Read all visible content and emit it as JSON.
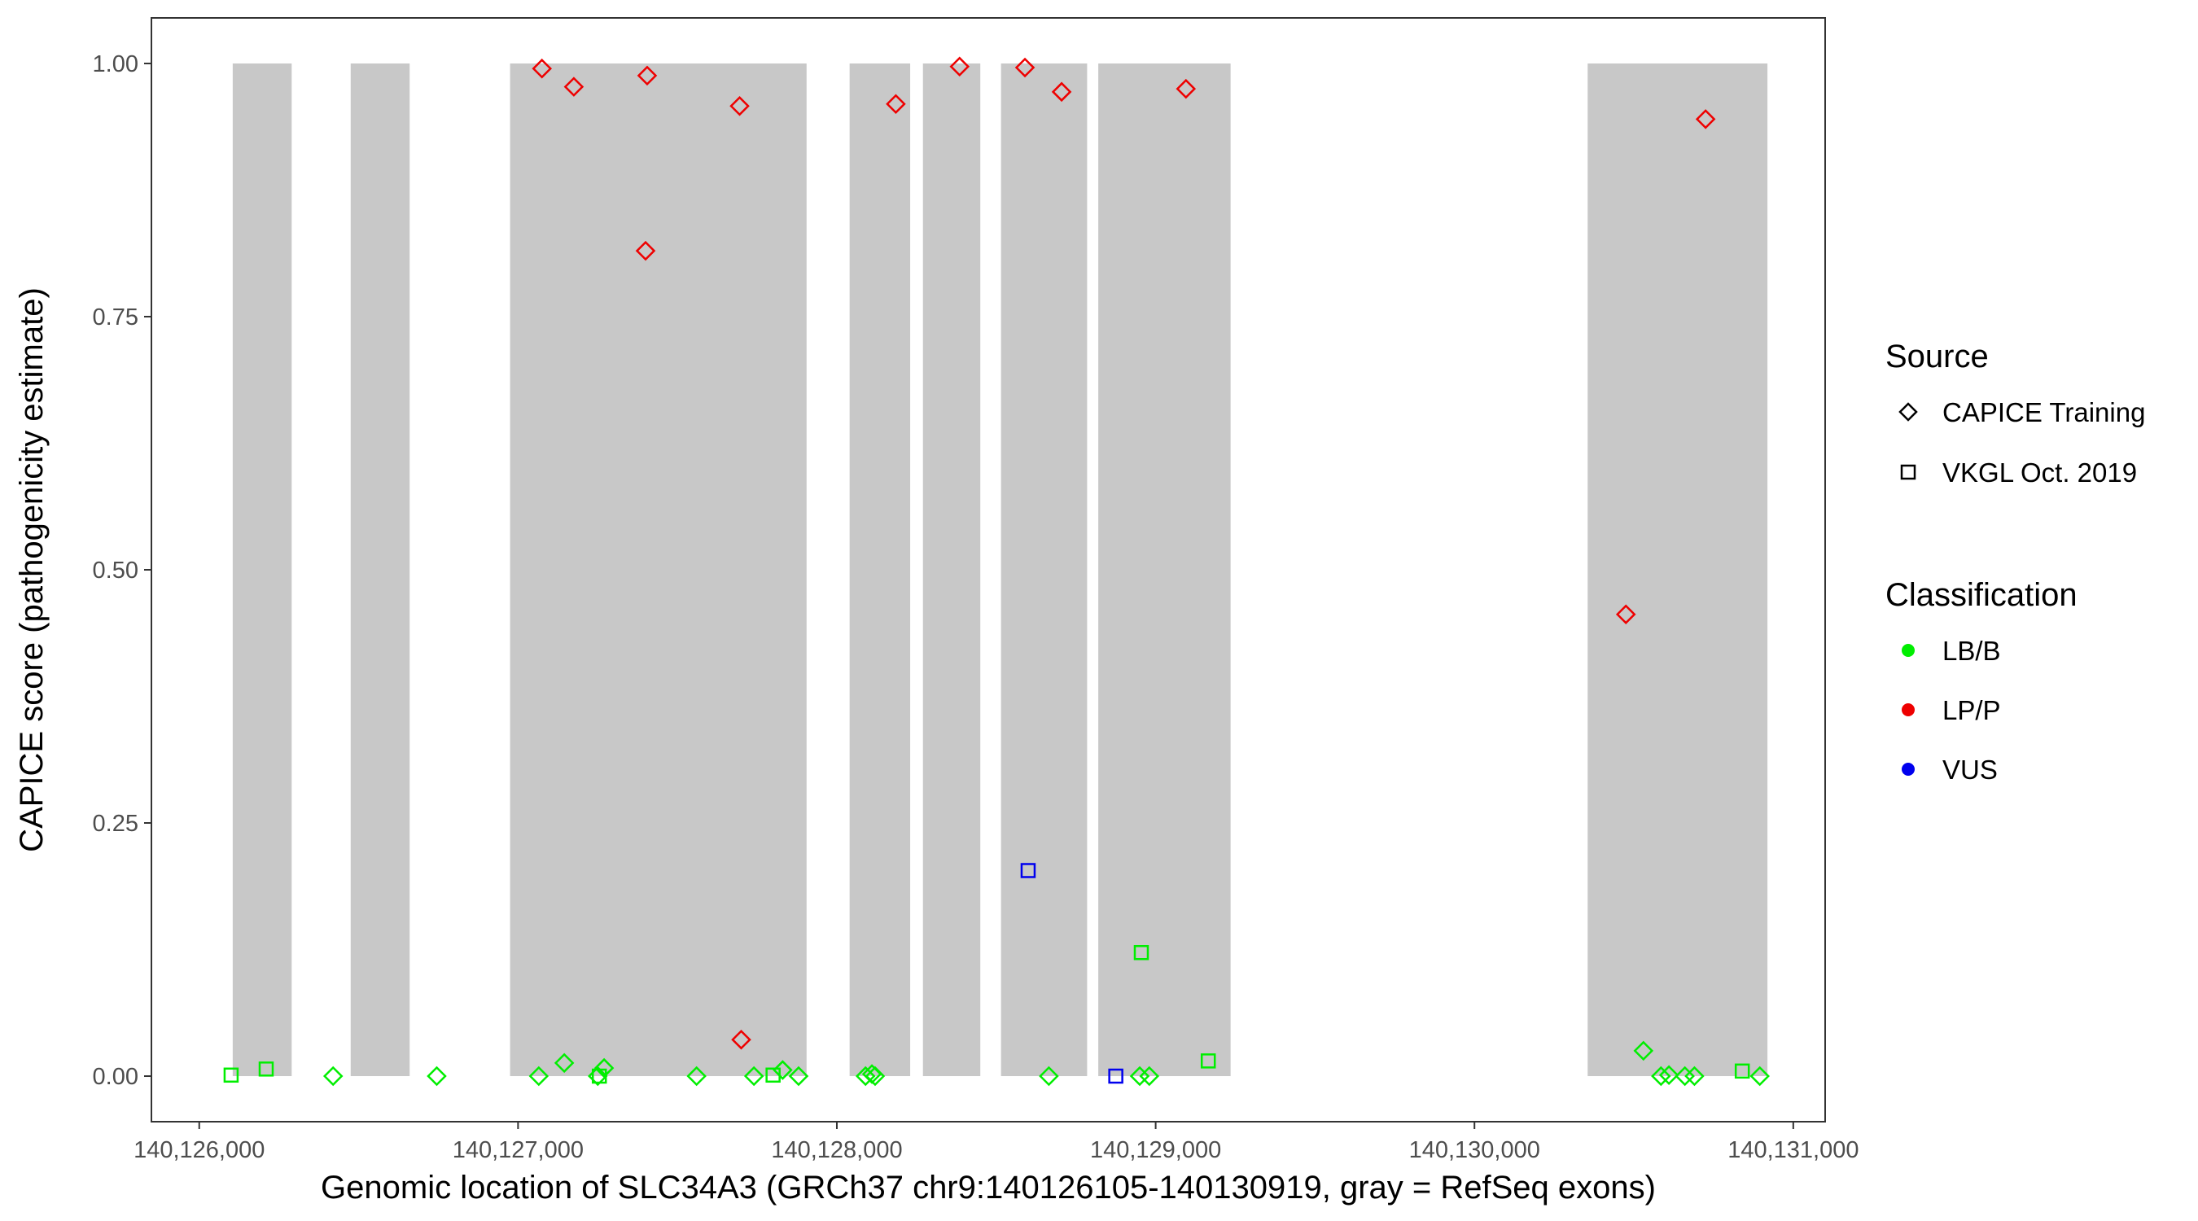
{
  "chart_data": {
    "type": "scatter",
    "title": "",
    "xlabel": "Genomic location of SLC34A3 (GRCh37 chr9:140126105-140130919, gray = RefSeq exons)",
    "ylabel": "CAPICE score (pathogenicity estimate)",
    "xlim": [
      140125850,
      140131100
    ],
    "ylim": [
      -0.045,
      1.045
    ],
    "x_ticks": [
      140126000,
      140127000,
      140128000,
      140129000,
      140130000,
      140131000
    ],
    "x_tick_labels": [
      "140,126,000",
      "140,127,000",
      "140,128,000",
      "140,129,000",
      "140,130,000",
      "140,131,000"
    ],
    "y_ticks": [
      0,
      0.25,
      0.5,
      0.75,
      1.0
    ],
    "y_tick_labels": [
      "0.00",
      "0.25",
      "0.50",
      "0.75",
      "1.00"
    ],
    "grid": false,
    "exon_color": "#c8c8c8",
    "exons": [
      [
        140126105,
        140126290
      ],
      [
        140126475,
        140126660
      ],
      [
        140126975,
        140127905
      ],
      [
        140128040,
        140128230
      ],
      [
        140128270,
        140128450
      ],
      [
        140128515,
        140128785
      ],
      [
        140128820,
        140129235
      ],
      [
        140130355,
        140130919
      ]
    ],
    "legend": {
      "position": "right",
      "source_title": "Source",
      "source_items": [
        {
          "label": "CAPICE Training",
          "shape": "diamond"
        },
        {
          "label": "VKGL Oct. 2019",
          "shape": "square"
        }
      ],
      "class_title": "Classification",
      "class_items": [
        {
          "label": "LB/B",
          "color": "#00ee00"
        },
        {
          "label": "LP/P",
          "color": "#ee0000"
        },
        {
          "label": "VUS",
          "color": "#0000ee"
        }
      ]
    },
    "series": [
      {
        "name": "CAPICE Training LP/P",
        "shape": "diamond",
        "color": "#ee0000",
        "points": [
          [
            140127075,
            0.995
          ],
          [
            140127175,
            0.977
          ],
          [
            140127405,
            0.988
          ],
          [
            140127400,
            0.815
          ],
          [
            140127695,
            0.958
          ],
          [
            140127700,
            0.036
          ],
          [
            140128185,
            0.96
          ],
          [
            140128385,
            0.997
          ],
          [
            140128590,
            0.996
          ],
          [
            140128705,
            0.972
          ],
          [
            140129095,
            0.975
          ],
          [
            140130475,
            0.456
          ],
          [
            140130725,
            0.945
          ]
        ]
      },
      {
        "name": "CAPICE Training LB/B",
        "shape": "diamond",
        "color": "#00ee00",
        "points": [
          [
            140126420,
            0.0
          ],
          [
            140126745,
            0.0
          ],
          [
            140127065,
            0.0
          ],
          [
            140127145,
            0.013
          ],
          [
            140127250,
            0.0
          ],
          [
            140127270,
            0.008
          ],
          [
            140127560,
            0.0
          ],
          [
            140127740,
            0.0
          ],
          [
            140127830,
            0.006
          ],
          [
            140127880,
            0.0
          ],
          [
            140128090,
            0.0
          ],
          [
            140128110,
            0.002
          ],
          [
            140128120,
            0.0
          ],
          [
            140128665,
            0.0
          ],
          [
            140128950,
            0.0
          ],
          [
            140128980,
            0.0
          ],
          [
            140130530,
            0.025
          ],
          [
            140130585,
            0.0
          ],
          [
            140130610,
            0.001
          ],
          [
            140130660,
            0.0
          ],
          [
            140130690,
            0.0
          ],
          [
            140130895,
            0.0
          ]
        ]
      },
      {
        "name": "VKGL Oct. 2019 LB/B",
        "shape": "square",
        "color": "#00ee00",
        "points": [
          [
            140126100,
            0.001
          ],
          [
            140126210,
            0.007
          ],
          [
            140127255,
            0.0
          ],
          [
            140127800,
            0.001
          ],
          [
            140128955,
            0.122
          ],
          [
            140129165,
            0.015
          ],
          [
            140130840,
            0.005
          ]
        ]
      },
      {
        "name": "VKGL Oct. 2019 VUS",
        "shape": "square",
        "color": "#0000ee",
        "points": [
          [
            140128600,
            0.203
          ],
          [
            140128875,
            0.0
          ]
        ]
      }
    ]
  }
}
